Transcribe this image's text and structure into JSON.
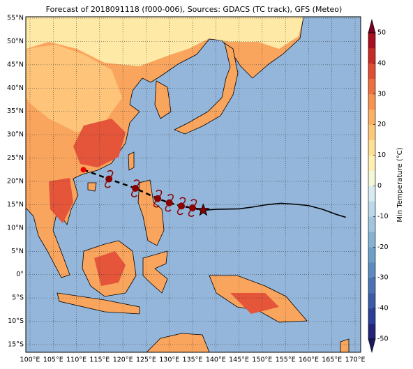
{
  "title": "Forecast of 2018091118 (f000-006), Sources: GDACS (TC track), GFS (Meteo)",
  "lonlim": [
    99.1,
    171.2
  ],
  "latlim": [
    -16.65,
    55.3
  ],
  "lon_ticks": [
    {
      "value": 100,
      "label": "100°E"
    },
    {
      "value": 105,
      "label": "105°E"
    },
    {
      "value": 110,
      "label": "110°E"
    },
    {
      "value": 115,
      "label": "115°E"
    },
    {
      "value": 120,
      "label": "120°E"
    },
    {
      "value": 125,
      "label": "125°E"
    },
    {
      "value": 130,
      "label": "130°E"
    },
    {
      "value": 135,
      "label": "135°E"
    },
    {
      "value": 140,
      "label": "140°E"
    },
    {
      "value": 145,
      "label": "145°E"
    },
    {
      "value": 150,
      "label": "150°E"
    },
    {
      "value": 155,
      "label": "155°E"
    },
    {
      "value": 160,
      "label": "160°E"
    },
    {
      "value": 165,
      "label": "165°E"
    },
    {
      "value": 170,
      "label": "170°E"
    }
  ],
  "lat_ticks": [
    {
      "value": 55,
      "label": "55°N"
    },
    {
      "value": 50,
      "label": "50°N"
    },
    {
      "value": 45,
      "label": "45°N"
    },
    {
      "value": 40,
      "label": "40°N"
    },
    {
      "value": 35,
      "label": "35°N"
    },
    {
      "value": 30,
      "label": "30°N"
    },
    {
      "value": 25,
      "label": "25°N"
    },
    {
      "value": 20,
      "label": "20°N"
    },
    {
      "value": 15,
      "label": "15°N"
    },
    {
      "value": 10,
      "label": "10°N"
    },
    {
      "value": 5,
      "label": "5°N"
    },
    {
      "value": 0,
      "label": "0°"
    },
    {
      "value": -5,
      "label": "5°S"
    },
    {
      "value": -10,
      "label": "10°S"
    },
    {
      "value": -15,
      "label": "15°S"
    }
  ],
  "track": {
    "lon": [
      111.5,
      117,
      122.7,
      127.5,
      130,
      132.6,
      135
    ],
    "lat": [
      22.5,
      20.5,
      18.5,
      16.3,
      15.4,
      14.7,
      14.3
    ]
  },
  "position": {
    "lon": [
      137.3
    ],
    "lat": [
      13.8
    ]
  },
  "forecast": {
    "lon": [
      137.3,
      140,
      145,
      148,
      151,
      154,
      157,
      160,
      163,
      166,
      168
    ],
    "lat": [
      13.8,
      14.0,
      14.1,
      14.5,
      15.0,
      15.3,
      15.1,
      14.8,
      14.0,
      12.9,
      12.3
    ]
  },
  "colorbar": {
    "label": "Min Temperature (°C)",
    "lim": [
      -50,
      50
    ],
    "ticks": [
      -50,
      -40,
      -30,
      -20,
      -10,
      0,
      10,
      20,
      30,
      40,
      50
    ],
    "colors": [
      "#22247a",
      "#2c3e96",
      "#3b5aa8",
      "#4a73b5",
      "#5b8bc0",
      "#6d9fc9",
      "#85b3d4",
      "#a0c6e0",
      "#bbd9ea",
      "#d7ecf2",
      "#f3f9d8",
      "#fef0b3",
      "#fee095",
      "#fdc97a",
      "#fcb064",
      "#f7924f",
      "#ee7040",
      "#df4d33",
      "#c82a26",
      "#a8101f"
    ],
    "under": "#1a1a60",
    "over": "#7a0020"
  }
}
